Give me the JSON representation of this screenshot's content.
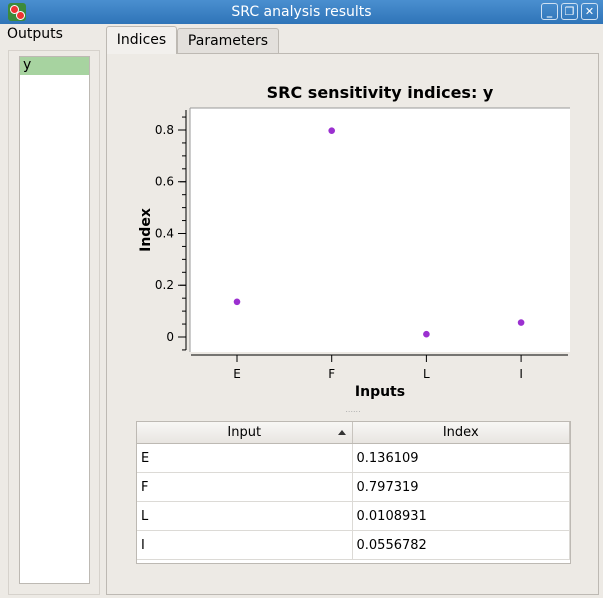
{
  "window": {
    "title": "SRC analysis results"
  },
  "outputs": {
    "label": "Outputs",
    "items": [
      "y"
    ]
  },
  "tabs": [
    {
      "label": "Indices"
    },
    {
      "label": "Parameters"
    }
  ],
  "chart_data": {
    "type": "scatter",
    "title": "SRC sensitivity indices: y",
    "xlabel": "Inputs",
    "ylabel": "Index",
    "categories": [
      "E",
      "F",
      "L",
      "I"
    ],
    "values": [
      0.136109,
      0.797319,
      0.0108931,
      0.0556782
    ],
    "ylim": [
      -0.058,
      0.885
    ],
    "yticks": [
      0,
      0.2,
      0.4,
      0.6,
      0.8
    ],
    "ytick_labels": [
      "0",
      "0.2",
      "0.4",
      "0.6",
      "0.8"
    ],
    "grid": false,
    "marker_color": "#9b30d0"
  },
  "table": {
    "headers": [
      "Input",
      "Index"
    ],
    "rows": [
      [
        "E",
        "0.136109"
      ],
      [
        "F",
        "0.797319"
      ],
      [
        "L",
        "0.0108931"
      ],
      [
        "I",
        "0.0556782"
      ]
    ]
  }
}
